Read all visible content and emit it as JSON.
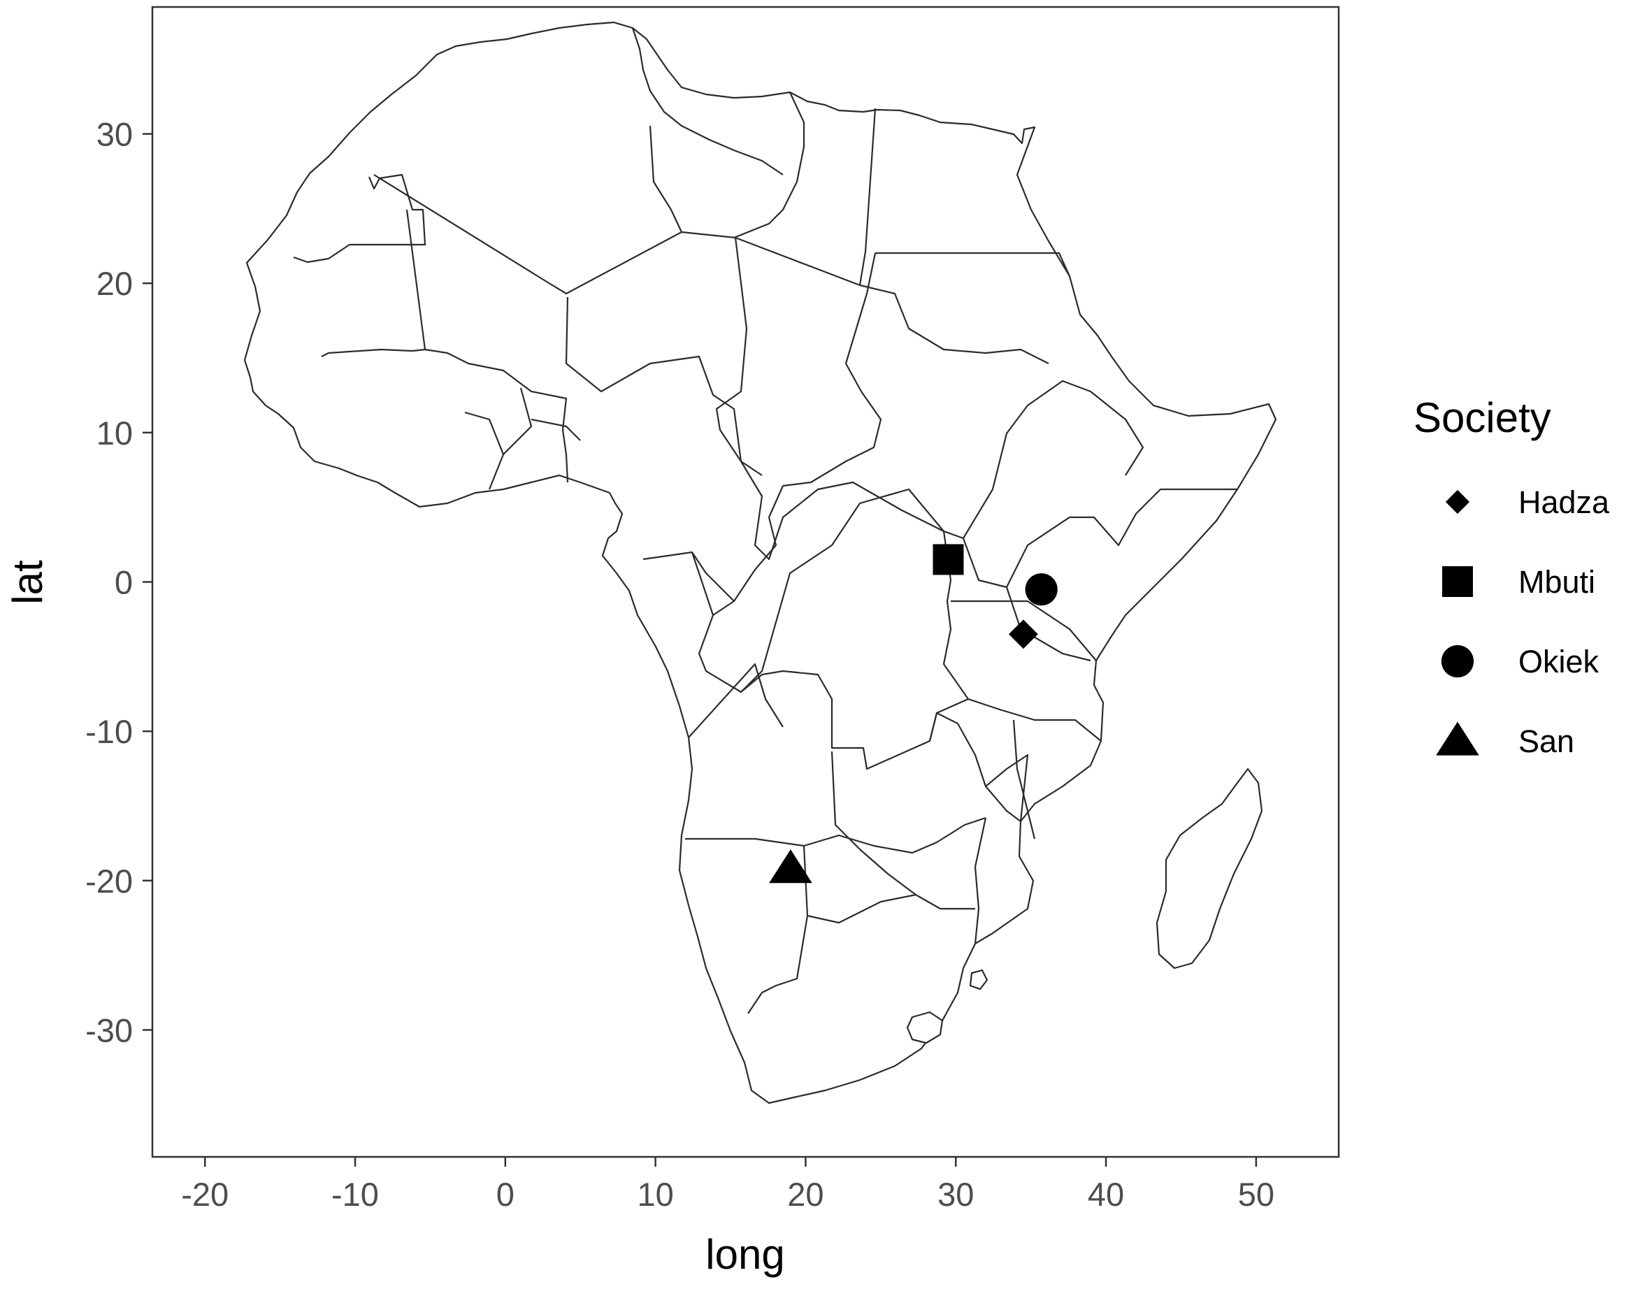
{
  "chart_data": {
    "type": "scatter",
    "subtype": "map",
    "title": "",
    "xlabel": "long",
    "ylabel": "lat",
    "xlim": [
      -23.5,
      55.5
    ],
    "ylim": [
      -38.5,
      38.5
    ],
    "x_ticks": [
      -20,
      -10,
      0,
      10,
      20,
      30,
      40,
      50
    ],
    "y_ticks": [
      -30,
      -20,
      -10,
      0,
      10,
      20,
      30
    ],
    "x_tick_labels": [
      "-20",
      "-10",
      "0",
      "10",
      "20",
      "30",
      "40",
      "50"
    ],
    "y_tick_labels": [
      "-30",
      "-20",
      "-10",
      "0",
      "10",
      "20",
      "30"
    ],
    "grid": false,
    "background": "#ffffff",
    "basemap": "Africa country borders",
    "legend": {
      "title": "Society",
      "position": "right",
      "entries": [
        {
          "label": "Hadza",
          "shape": "diamond"
        },
        {
          "label": "Mbuti",
          "shape": "square"
        },
        {
          "label": "Okiek",
          "shape": "circle"
        },
        {
          "label": "San",
          "shape": "triangle"
        }
      ]
    },
    "points": [
      {
        "society": "Hadza",
        "long": 34.5,
        "lat": -3.5,
        "shape": "diamond"
      },
      {
        "society": "Mbuti",
        "long": 29.5,
        "lat": 1.5,
        "shape": "square"
      },
      {
        "society": "Okiek",
        "long": 35.7,
        "lat": -0.5,
        "shape": "circle"
      },
      {
        "society": "San",
        "long": 19.0,
        "lat": -19.2,
        "shape": "triangle"
      }
    ],
    "colors": {
      "markers": "#000000",
      "outline": "#2b2b2b",
      "tick_text": "#4d4d4d"
    }
  }
}
